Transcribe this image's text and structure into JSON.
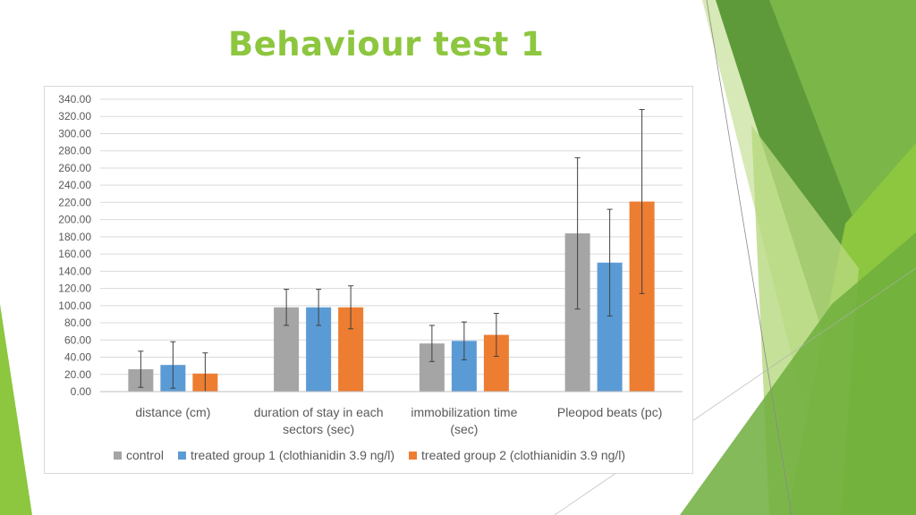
{
  "slide": {
    "title": "Behaviour test 1"
  },
  "theme": {
    "accent_green": "#8dc63f",
    "dark_green": "#5e9a3a",
    "light_green": "#c9e29a"
  },
  "chart_data": {
    "type": "bar",
    "categories": [
      [
        "distance (cm)"
      ],
      [
        "duration of stay in each",
        "sectors (sec)"
      ],
      [
        "immobilization time",
        "(sec)"
      ],
      [
        "Pleopod beats (pc)"
      ]
    ],
    "series": [
      {
        "name": "control",
        "color": "#a5a5a5",
        "values": [
          26,
          98,
          56,
          184
        ],
        "errors": [
          21,
          21,
          21,
          88
        ]
      },
      {
        "name": "treated group 1 (clothianidin 3.9 ng/l)",
        "color": "#5b9bd5",
        "values": [
          31,
          98,
          59,
          150
        ],
        "errors": [
          27,
          21,
          22,
          62
        ]
      },
      {
        "name": "treated group 2 (clothianidin 3.9 ng/l)",
        "color": "#ed7d31",
        "values": [
          21,
          98,
          66,
          221
        ],
        "errors": [
          24,
          25,
          25,
          107
        ]
      }
    ],
    "ylim": [
      0,
      340
    ],
    "ytick_step": 20,
    "ytick_labels": [
      "0.00",
      "20.00",
      "40.00",
      "60.00",
      "80.00",
      "100.00",
      "120.00",
      "140.00",
      "160.00",
      "180.00",
      "200.00",
      "220.00",
      "240.00",
      "260.00",
      "280.00",
      "300.00",
      "320.00",
      "340.00"
    ],
    "grid": true,
    "legend_position": "bottom",
    "title": "",
    "xlabel": "",
    "ylabel": ""
  }
}
